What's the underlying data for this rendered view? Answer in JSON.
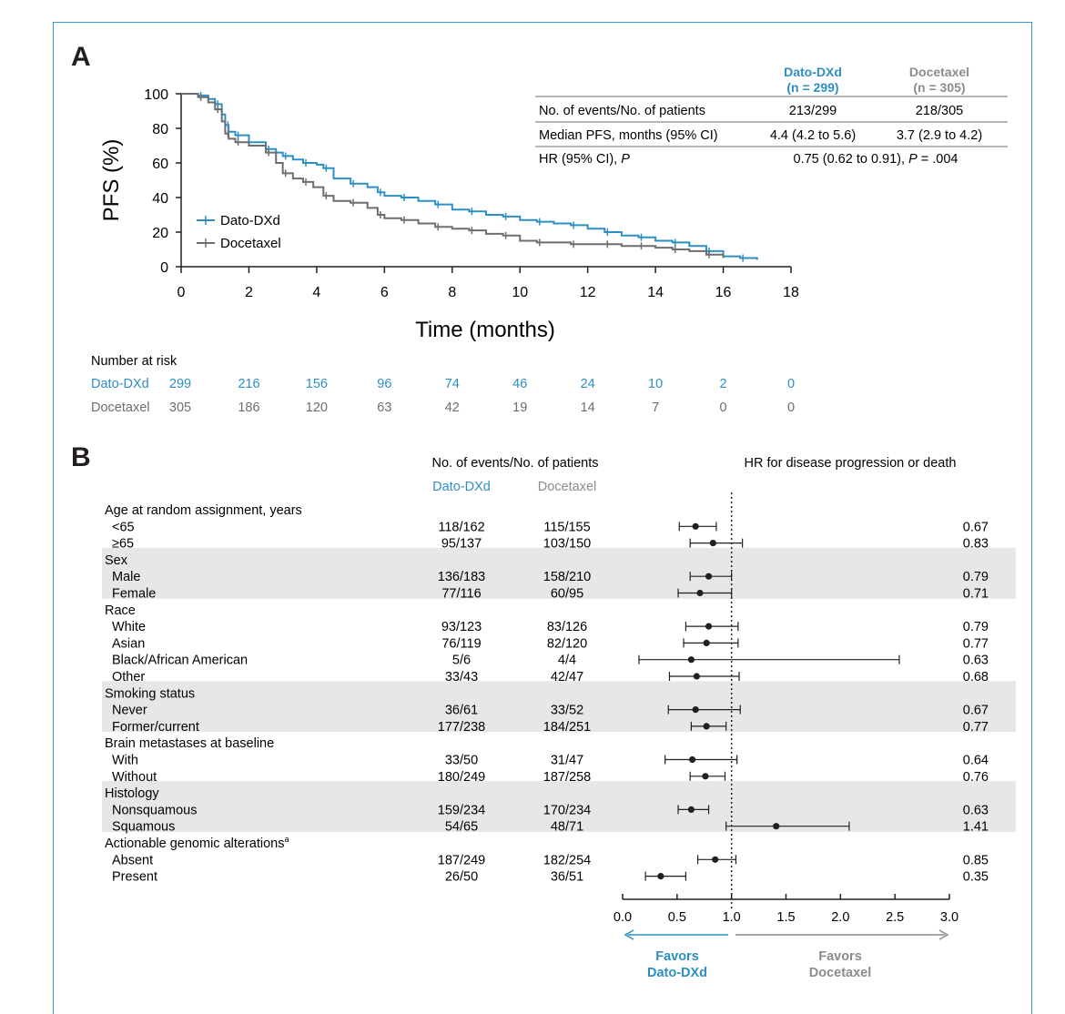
{
  "panel_a": {
    "label": "A",
    "summary_table": {
      "headers": [
        {
          "name": "Dato-DXd",
          "n": "(n = 299)"
        },
        {
          "name": "Docetaxel",
          "n": "(n = 305)"
        }
      ],
      "rows": [
        {
          "label": "No. of events/No. of patients",
          "dato": "213/299",
          "doce": "218/305"
        },
        {
          "label": "Median PFS, months (95% CI)",
          "dato": "4.4 (4.2 to 5.6)",
          "doce": "3.7 (2.9 to 4.2)"
        }
      ],
      "hr_row": {
        "label_prefix": "HR (95% CI), ",
        "label_italic": "P",
        "value_prefix": "0.75 (0.62 to 0.91), ",
        "value_italic": "P",
        "value_suffix": " = .004"
      }
    },
    "risk_table": {
      "title": "Number at risk",
      "rows": [
        {
          "name": "Dato-DXd",
          "values": [
            "299",
            "216",
            "156",
            "96",
            "74",
            "46",
            "24",
            "10",
            "2",
            "0"
          ]
        },
        {
          "name": "Docetaxel",
          "values": [
            "305",
            "186",
            "120",
            "63",
            "42",
            "19",
            "14",
            "7",
            "0",
            "0"
          ]
        }
      ]
    }
  },
  "panel_b": {
    "label": "B",
    "events_header": "No. of events/No. of patients",
    "col_dato": "Dato-DXd",
    "col_doce": "Docetaxel",
    "hr_header": "HR for disease progression or death",
    "favors_left": [
      "Favors",
      "Dato-DXd"
    ],
    "favors_right": [
      "Favors",
      "Docetaxel"
    ]
  },
  "colors": {
    "dato": "#2e8fc4",
    "doce": "#6d6e71",
    "shade": "#e6e7e8",
    "frame": "#3a9bd1"
  },
  "chart_data": [
    {
      "type": "line",
      "title": "",
      "xlabel": "Time (months)",
      "ylabel": "PFS (%)",
      "xlim": [
        0,
        18
      ],
      "ylim": [
        0,
        100
      ],
      "xticks": [
        0,
        2,
        4,
        6,
        8,
        10,
        12,
        14,
        16,
        18
      ],
      "yticks": [
        0,
        20,
        40,
        60,
        80,
        100
      ],
      "legend_position": "lower-left",
      "series": [
        {
          "name": "Dato-DXd",
          "x": [
            0,
            0.5,
            0.8,
            1.0,
            1.2,
            1.3,
            1.4,
            1.6,
            2.0,
            2.5,
            2.8,
            3.0,
            3.3,
            3.6,
            4.0,
            4.2,
            4.5,
            5.0,
            5.5,
            5.8,
            6.0,
            6.5,
            7.0,
            7.5,
            8.0,
            8.5,
            9.0,
            9.5,
            10.0,
            10.5,
            11.0,
            11.5,
            12.0,
            12.5,
            13.0,
            13.5,
            14.0,
            14.5,
            15.0,
            15.5,
            16.0,
            16.5,
            17.0
          ],
          "y": [
            100,
            99,
            97,
            94,
            88,
            82,
            78,
            76,
            72,
            68,
            66,
            64,
            62,
            60,
            59,
            57,
            51,
            48,
            46,
            43,
            41,
            40,
            38,
            36,
            33,
            32,
            30,
            29,
            27,
            26,
            25,
            24,
            22,
            20,
            18,
            17,
            15,
            14,
            12,
            9,
            6,
            5,
            4
          ]
        },
        {
          "name": "Docetaxel",
          "x": [
            0,
            0.5,
            0.8,
            1.0,
            1.2,
            1.3,
            1.4,
            1.6,
            2.0,
            2.5,
            2.8,
            3.0,
            3.3,
            3.6,
            3.9,
            4.2,
            4.5,
            5.0,
            5.5,
            5.8,
            6.0,
            6.5,
            7.0,
            7.5,
            8.0,
            8.5,
            9.0,
            9.5,
            10.0,
            10.5,
            11.0,
            11.5,
            12.0,
            12.5,
            13.0,
            13.5,
            14.0,
            14.5,
            15.0,
            15.5,
            16.0
          ],
          "y": [
            100,
            98,
            95,
            91,
            84,
            77,
            74,
            72,
            70,
            66,
            60,
            54,
            51,
            49,
            46,
            41,
            38,
            37,
            34,
            30,
            28,
            27,
            25,
            23,
            22,
            21,
            19,
            18,
            15,
            14,
            14,
            13,
            13,
            13,
            12,
            12,
            11,
            10,
            9,
            7,
            5
          ]
        }
      ]
    },
    {
      "type": "scatter",
      "title": "",
      "xlabel": "",
      "xlim": [
        0,
        3
      ],
      "xticks": [
        "0.0",
        "0.5",
        "1.0",
        "1.5",
        "2.0",
        "2.5",
        "3.0"
      ],
      "reference_line": 1.0,
      "rows": [
        {
          "label": "Age at random assignment, years",
          "header": true,
          "shade": false
        },
        {
          "label": "<65",
          "dato": "118/162",
          "doce": "115/155",
          "hr": 0.67,
          "lo": 0.52,
          "hi": 0.86,
          "hr_text": "0.67",
          "shade": false
        },
        {
          "label": "≥65",
          "dato": "95/137",
          "doce": "103/150",
          "hr": 0.83,
          "lo": 0.62,
          "hi": 1.1,
          "hr_text": "0.83",
          "shade": false
        },
        {
          "label": "Sex",
          "header": true,
          "shade": true
        },
        {
          "label": "Male",
          "dato": "136/183",
          "doce": "158/210",
          "hr": 0.79,
          "lo": 0.62,
          "hi": 1.0,
          "hr_text": "0.79",
          "shade": true
        },
        {
          "label": "Female",
          "dato": "77/116",
          "doce": "60/95",
          "hr": 0.71,
          "lo": 0.51,
          "hi": 1.0,
          "hr_text": "0.71",
          "shade": true
        },
        {
          "label": "Race",
          "header": true,
          "shade": false
        },
        {
          "label": "White",
          "dato": "93/123",
          "doce": "83/126",
          "hr": 0.79,
          "lo": 0.58,
          "hi": 1.06,
          "hr_text": "0.79",
          "shade": false
        },
        {
          "label": "Asian",
          "dato": "76/119",
          "doce": "82/120",
          "hr": 0.77,
          "lo": 0.56,
          "hi": 1.06,
          "hr_text": "0.77",
          "shade": false
        },
        {
          "label": "Black/African American",
          "dato": "5/6",
          "doce": "4/4",
          "hr": 0.63,
          "lo": 0.15,
          "hi": 2.54,
          "hr_text": "0.63",
          "shade": false
        },
        {
          "label": "Other",
          "dato": "33/43",
          "doce": "42/47",
          "hr": 0.68,
          "lo": 0.43,
          "hi": 1.07,
          "hr_text": "0.68",
          "shade": false
        },
        {
          "label": "Smoking status",
          "header": true,
          "shade": true
        },
        {
          "label": "Never",
          "dato": "36/61",
          "doce": "33/52",
          "hr": 0.67,
          "lo": 0.42,
          "hi": 1.08,
          "hr_text": "0.67",
          "shade": true
        },
        {
          "label": "Former/current",
          "dato": "177/238",
          "doce": "184/251",
          "hr": 0.77,
          "lo": 0.63,
          "hi": 0.95,
          "hr_text": "0.77",
          "shade": true
        },
        {
          "label": "Brain metastases at baseline",
          "header": true,
          "shade": false
        },
        {
          "label": "With",
          "dato": "33/50",
          "doce": "31/47",
          "hr": 0.64,
          "lo": 0.39,
          "hi": 1.05,
          "hr_text": "0.64",
          "shade": false
        },
        {
          "label": "Without",
          "dato": "180/249",
          "doce": "187/258",
          "hr": 0.76,
          "lo": 0.62,
          "hi": 0.94,
          "hr_text": "0.76",
          "shade": false
        },
        {
          "label": "Histology",
          "header": true,
          "shade": true
        },
        {
          "label": "Nonsquamous",
          "dato": "159/234",
          "doce": "170/234",
          "hr": 0.63,
          "lo": 0.51,
          "hi": 0.79,
          "hr_text": "0.63",
          "shade": true
        },
        {
          "label": "Squamous",
          "dato": "54/65",
          "doce": "48/71",
          "hr": 1.41,
          "lo": 0.95,
          "hi": 2.08,
          "hr_text": "1.41",
          "shade": true
        },
        {
          "label": "Actionable genomic alterations",
          "label_sup": "a",
          "header": true,
          "shade": false
        },
        {
          "label": "Absent",
          "dato": "187/249",
          "doce": "182/254",
          "hr": 0.85,
          "lo": 0.69,
          "hi": 1.04,
          "hr_text": "0.85",
          "shade": false
        },
        {
          "label": "Present",
          "dato": "26/50",
          "doce": "36/51",
          "hr": 0.35,
          "lo": 0.21,
          "hi": 0.58,
          "hr_text": "0.35",
          "shade": false
        }
      ]
    }
  ]
}
